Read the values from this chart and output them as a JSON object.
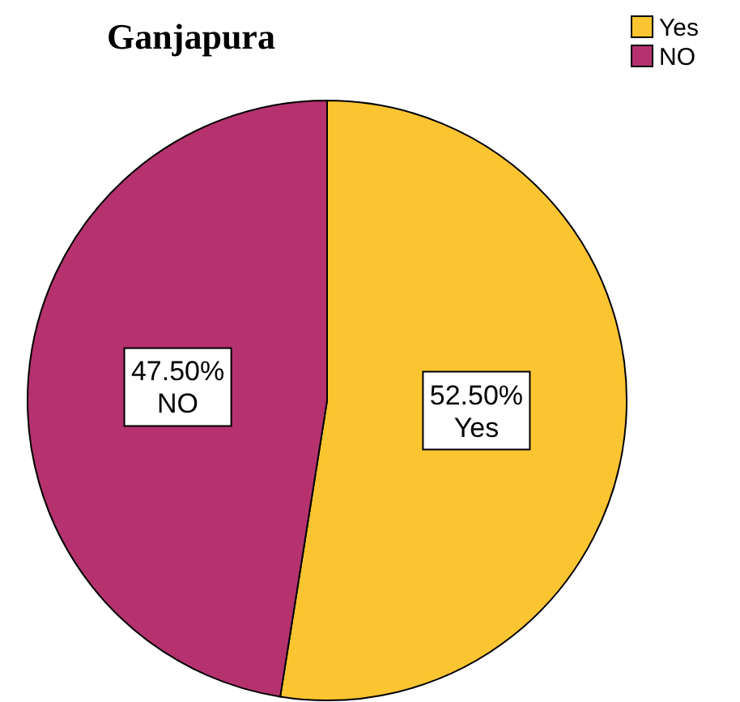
{
  "chart_data": {
    "type": "pie",
    "title": "Ganjapura",
    "categories": [
      "Yes",
      "NO"
    ],
    "values": [
      52.5,
      47.5
    ],
    "colors": [
      "#fbc531",
      "#b5326f"
    ],
    "value_labels": [
      "52.50%",
      "47.50%"
    ],
    "legend": "top right"
  }
}
